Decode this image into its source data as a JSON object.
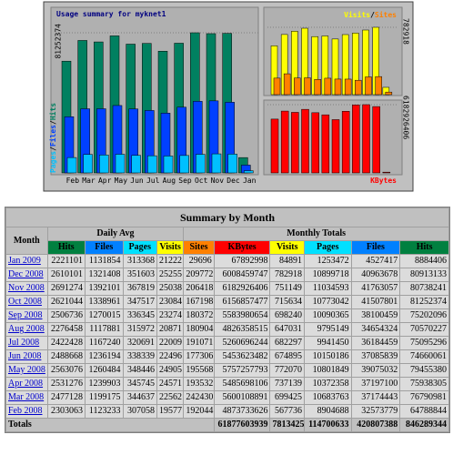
{
  "chart_data": [
    {
      "type": "bar",
      "title": "Usage summary for myknet1",
      "categories": [
        "Feb",
        "Mar",
        "Apr",
        "May",
        "Jun",
        "Jul",
        "Aug",
        "Sep",
        "Oct",
        "Nov",
        "Dec",
        "Jan"
      ],
      "legend_separator": "/",
      "series": [
        {
          "name": "Pages",
          "color": "#00c0ff",
          "values": [
            8904688,
            10683763,
            10372358,
            10801849,
            10150186,
            9941450,
            9795149,
            10090365,
            10773042,
            11034593,
            10899718,
            1253472
          ]
        },
        {
          "name": "Files",
          "color": "#0040ff",
          "values": [
            32573779,
            37174443,
            37197100,
            39075032,
            37085839,
            36184459,
            34654324,
            38100459,
            41507801,
            41763057,
            40963678,
            4527417
          ]
        },
        {
          "name": "Hits",
          "color": "#008060",
          "values": [
            64788844,
            76790981,
            75938305,
            79455380,
            74660061,
            75095296,
            70570227,
            75202096,
            81252374,
            80738241,
            80913133,
            8884406
          ]
        }
      ],
      "ylim": [
        0,
        81252374
      ],
      "yticks": [
        81252374
      ]
    },
    {
      "type": "bar",
      "legend_separator": "/",
      "series": [
        {
          "name": "Visits",
          "color": "#ffff00",
          "values": [
            567736,
            699425,
            737139,
            772070,
            674895,
            682297,
            647031,
            698240,
            715634,
            751149,
            782918,
            84891
          ]
        },
        {
          "name": "Sites",
          "color": "#ff8000",
          "values": [
            192044,
            242430,
            193532,
            195568,
            177306,
            191071,
            180904,
            180372,
            167198,
            206418,
            209772,
            29696
          ]
        }
      ],
      "ylim": [
        0,
        782918
      ],
      "yticks": [
        782918
      ]
    },
    {
      "type": "bar",
      "series": [
        {
          "name": "KBytes",
          "color": "#ff0000",
          "values": [
            4873733626,
            5600108891,
            5485698106,
            5757257793,
            5453623482,
            5260696244,
            4826358515,
            5583980654,
            6156857477,
            6182926406,
            6008459747,
            67892998
          ]
        }
      ],
      "ylim": [
        0,
        6182926406
      ],
      "yticks": [
        6182926406
      ]
    }
  ],
  "table": {
    "title": "Summary by Month",
    "month_header": "Month",
    "group_headers": [
      "Daily Avg",
      "Monthly Totals"
    ],
    "columns": [
      "Hits",
      "Files",
      "Pages",
      "Visits",
      "Sites",
      "KBytes",
      "Visits",
      "Pages",
      "Files",
      "Hits"
    ],
    "column_colors": [
      "#008040",
      "#0080ff",
      "#00e0ff",
      "#ffff00",
      "#ff8000",
      "#ff0000",
      "#ffff00",
      "#00e0ff",
      "#0080ff",
      "#008040"
    ],
    "rows": [
      [
        "Jan 2009",
        2221101,
        1131854,
        313368,
        21222,
        29696,
        67892998,
        84891,
        1253472,
        4527417,
        8884406
      ],
      [
        "Dec 2008",
        2610101,
        1321408,
        351603,
        25255,
        209772,
        6008459747,
        782918,
        10899718,
        40963678,
        80913133
      ],
      [
        "Nov 2008",
        2691274,
        1392101,
        367819,
        25038,
        206418,
        6182926406,
        751149,
        11034593,
        41763057,
        80738241
      ],
      [
        "Oct 2008",
        2621044,
        1338961,
        347517,
        23084,
        167198,
        6156857477,
        715634,
        10773042,
        41507801,
        81252374
      ],
      [
        "Sep 2008",
        2506736,
        1270015,
        336345,
        23274,
        180372,
        5583980654,
        698240,
        10090365,
        38100459,
        75202096
      ],
      [
        "Aug 2008",
        2276458,
        1117881,
        315972,
        20871,
        180904,
        4826358515,
        647031,
        9795149,
        34654324,
        70570227
      ],
      [
        "Jul 2008",
        2422428,
        1167240,
        320691,
        22009,
        191071,
        5260696244,
        682297,
        9941450,
        36184459,
        75095296
      ],
      [
        "Jun 2008",
        2488668,
        1236194,
        338339,
        22496,
        177306,
        5453623482,
        674895,
        10150186,
        37085839,
        74660061
      ],
      [
        "May 2008",
        2563076,
        1260484,
        348446,
        24905,
        195568,
        5757257793,
        772070,
        10801849,
        39075032,
        79455380
      ],
      [
        "Apr 2008",
        2531276,
        1239903,
        345745,
        24571,
        193532,
        5485698106,
        737139,
        10372358,
        37197100,
        75938305
      ],
      [
        "Mar 2008",
        2477128,
        1199175,
        344637,
        22562,
        242430,
        5600108891,
        699425,
        10683763,
        37174443,
        76790981
      ],
      [
        "Feb 2008",
        2303063,
        1123233,
        307058,
        19577,
        192044,
        4873733626,
        567736,
        8904688,
        32573779,
        64788844
      ]
    ],
    "totals": {
      "label": "Totals",
      "values": [
        61877603939,
        7813425,
        114700633,
        420807388,
        846289344
      ]
    }
  }
}
